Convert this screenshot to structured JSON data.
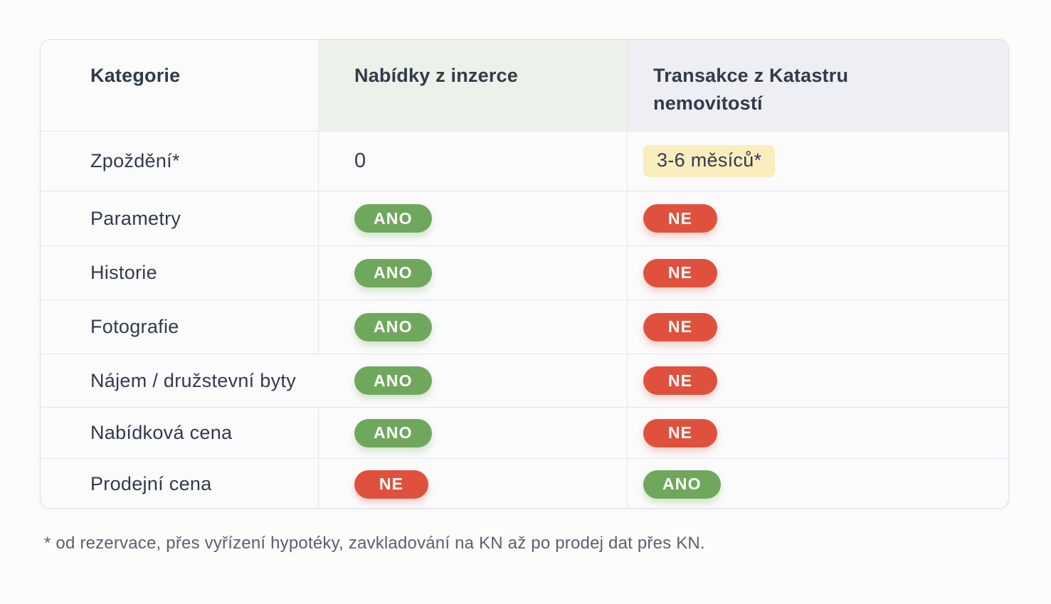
{
  "table": {
    "headers": [
      "Kategorie",
      "Nabídky z inzerce",
      "Transakce z Katastru nemovitostí"
    ],
    "rows": [
      {
        "label": "Zpoždění*",
        "cells": [
          {
            "type": "text",
            "label": "0"
          },
          {
            "type": "highlight",
            "label": "3-6 měsíců*"
          }
        ]
      },
      {
        "label": "Parametry",
        "cells": [
          {
            "type": "badge-yes",
            "label": "ANO"
          },
          {
            "type": "badge-no",
            "label": "NE"
          }
        ]
      },
      {
        "label": "Historie",
        "cells": [
          {
            "type": "badge-yes",
            "label": "ANO"
          },
          {
            "type": "badge-no",
            "label": "NE"
          }
        ]
      },
      {
        "label": "Fotografie",
        "cells": [
          {
            "type": "badge-yes",
            "label": "ANO"
          },
          {
            "type": "badge-no",
            "label": "NE"
          }
        ]
      },
      {
        "label": "Nájem / družstevní byty",
        "cells": [
          {
            "type": "badge-yes",
            "label": "ANO"
          },
          {
            "type": "badge-no",
            "label": "NE"
          }
        ]
      },
      {
        "label": "Nabídková cena",
        "cells": [
          {
            "type": "badge-yes",
            "label": "ANO"
          },
          {
            "type": "badge-no",
            "label": "NE"
          }
        ]
      },
      {
        "label": "Prodejní cena",
        "cells": [
          {
            "type": "badge-no",
            "label": "NE"
          },
          {
            "type": "badge-yes",
            "label": "ANO"
          }
        ]
      }
    ]
  },
  "footnote": "* od rezervace, přes vyřízení hypotéky, zavkladování na KN až po prodej dat přes KN.",
  "colors": {
    "badge_yes": "#6FA85C",
    "badge_no": "#E0513D",
    "highlight_bg": "#FAEDBE",
    "header_listings_bg": "#ECF1E9",
    "header_cadastre_bg": "#EEEFF4",
    "text_dark": "#313B4B",
    "footnote_text": "#59626F",
    "card_border": "#DCDFE8",
    "divider": "#E4E6EC"
  },
  "chart_data": {
    "type": "table",
    "title": "",
    "columns": [
      "Kategorie",
      "Nabídky z inzerce",
      "Transakce z Katastru nemovitostí"
    ],
    "rows": [
      [
        "Zpoždění*",
        "0",
        "3-6 měsíců*"
      ],
      [
        "Parametry",
        "ANO",
        "NE"
      ],
      [
        "Historie",
        "ANO",
        "NE"
      ],
      [
        "Fotografie",
        "ANO",
        "NE"
      ],
      [
        "Nájem / družstevní byty",
        "ANO",
        "NE"
      ],
      [
        "Nabídková cena",
        "ANO",
        "NE"
      ],
      [
        "Prodejní cena",
        "NE",
        "ANO"
      ]
    ],
    "footnote": "* od rezervace, přes vyřízení hypotéky, zavkladování na KN až po prodej dat přes KN.",
    "legend": {
      "ANO": "yes (green pill)",
      "NE": "no (red pill)"
    }
  }
}
